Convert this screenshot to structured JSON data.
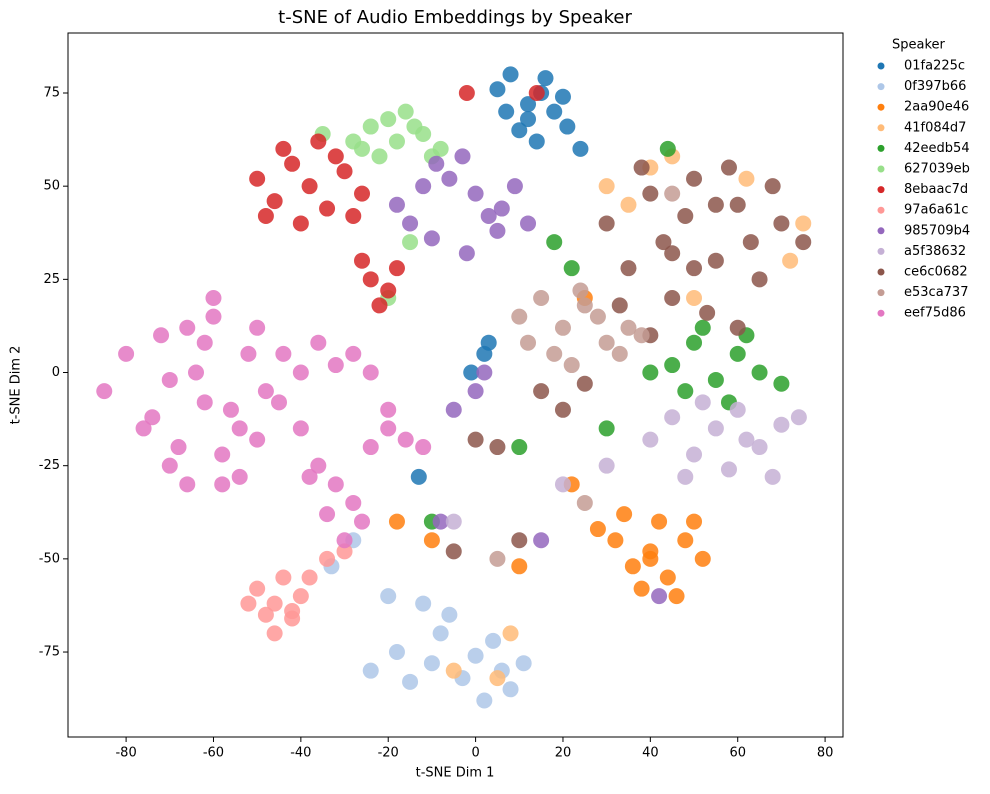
{
  "chart_data": {
    "type": "scatter",
    "title": "t-SNE of Audio Embeddings by Speaker",
    "x_label": "t-SNE Dim 1",
    "y_label": "t-SNE Dim 2",
    "legend_title": "Speaker",
    "legend_position": "outside-right",
    "xlim": [
      -93.3,
      84.1
    ],
    "ylim": [
      -97.8,
      91.1
    ],
    "xticks": [
      -80,
      -60,
      -40,
      -20,
      0,
      20,
      40,
      60,
      80
    ],
    "yticks": [
      -75,
      -50,
      -25,
      0,
      25,
      50,
      75
    ],
    "grid": false,
    "series": [
      {
        "name": "01fa225c",
        "color": "#1f77b4",
        "x": [
          5,
          8,
          12,
          15,
          18,
          21,
          10,
          14,
          20,
          7,
          16,
          12,
          2,
          -1,
          -13,
          3,
          24
        ],
        "y": [
          76,
          80,
          72,
          75,
          70,
          66,
          65,
          62,
          74,
          70,
          79,
          68,
          5,
          0,
          -28,
          8,
          60
        ]
      },
      {
        "name": "0f397b66",
        "color": "#aec7e8",
        "x": [
          -24,
          -18,
          -12,
          -8,
          -3,
          0,
          4,
          8,
          11,
          -15,
          -6,
          2,
          6,
          -20,
          -10,
          -28,
          -33
        ],
        "y": [
          -80,
          -75,
          -62,
          -70,
          -82,
          -76,
          -72,
          -85,
          -78,
          -83,
          -65,
          -88,
          -80,
          -60,
          -78,
          -45,
          -52
        ]
      },
      {
        "name": "2aa90e46",
        "color": "#ff7f0e",
        "x": [
          32,
          36,
          40,
          44,
          48,
          52,
          38,
          42,
          46,
          28,
          34,
          50,
          40,
          -10,
          -18,
          10,
          22,
          25
        ],
        "y": [
          -45,
          -52,
          -48,
          -55,
          -45,
          -50,
          -58,
          -40,
          -60,
          -42,
          -38,
          -40,
          -50,
          -45,
          -40,
          -52,
          -30,
          20
        ]
      },
      {
        "name": "41f084d7",
        "color": "#ffbb78",
        "x": [
          30,
          45,
          62,
          72,
          50,
          35,
          -5,
          5,
          8,
          75,
          40
        ],
        "y": [
          50,
          58,
          52,
          30,
          20,
          45,
          -80,
          -82,
          -70,
          40,
          55
        ]
      },
      {
        "name": "42eedb54",
        "color": "#2ca02c",
        "x": [
          45,
          50,
          55,
          60,
          65,
          48,
          58,
          52,
          62,
          40,
          70,
          22,
          18,
          30,
          -10,
          10,
          44
        ],
        "y": [
          2,
          8,
          -2,
          5,
          0,
          -5,
          -8,
          12,
          10,
          0,
          -3,
          28,
          35,
          -15,
          -40,
          -20,
          60
        ]
      },
      {
        "name": "627039eb",
        "color": "#98df8a",
        "x": [
          -28,
          -24,
          -20,
          -16,
          -12,
          -8,
          -22,
          -18,
          -14,
          -26,
          -10,
          -20,
          -15,
          -35
        ],
        "y": [
          62,
          66,
          68,
          70,
          64,
          60,
          58,
          62,
          66,
          60,
          58,
          20,
          35,
          64
        ]
      },
      {
        "name": "8ebaac7d",
        "color": "#d62728",
        "x": [
          -50,
          -46,
          -42,
          -38,
          -34,
          -30,
          -26,
          -44,
          -40,
          -36,
          -32,
          -28,
          -48,
          -24,
          -20,
          -26,
          -18,
          -2,
          14,
          -22
        ],
        "y": [
          52,
          46,
          56,
          50,
          44,
          54,
          48,
          60,
          40,
          62,
          58,
          42,
          42,
          25,
          22,
          30,
          28,
          75,
          75,
          18
        ]
      },
      {
        "name": "97a6a61c",
        "color": "#ff9896",
        "x": [
          -50,
          -46,
          -42,
          -48,
          -44,
          -40,
          -46,
          -38,
          -34,
          -30,
          -42,
          -52
        ],
        "y": [
          -58,
          -62,
          -66,
          -65,
          -55,
          -60,
          -70,
          -55,
          -50,
          -48,
          -64,
          -62
        ]
      },
      {
        "name": "985709b4",
        "color": "#9467bd",
        "x": [
          -18,
          -12,
          -6,
          0,
          6,
          12,
          -15,
          -9,
          -3,
          3,
          9,
          -10,
          -2,
          5,
          0,
          -5,
          2,
          -8,
          15,
          42
        ],
        "y": [
          45,
          50,
          52,
          48,
          44,
          40,
          40,
          56,
          58,
          42,
          50,
          36,
          32,
          38,
          -5,
          -10,
          0,
          -40,
          -45,
          -60
        ]
      },
      {
        "name": "a5f38632",
        "color": "#c5b0d5",
        "x": [
          40,
          45,
          50,
          55,
          60,
          65,
          70,
          48,
          58,
          68,
          52,
          62,
          74,
          20,
          30,
          -5
        ],
        "y": [
          -18,
          -12,
          -22,
          -15,
          -10,
          -20,
          -14,
          -28,
          -26,
          -28,
          -8,
          -18,
          -12,
          -30,
          -25,
          -40
        ]
      },
      {
        "name": "ce6c0682",
        "color": "#8c564b",
        "x": [
          30,
          35,
          40,
          45,
          50,
          55,
          60,
          65,
          70,
          75,
          33,
          38,
          43,
          48,
          53,
          58,
          63,
          68,
          40,
          50,
          60,
          45,
          55,
          15,
          20,
          25,
          5,
          0,
          10,
          -5
        ],
        "y": [
          40,
          28,
          48,
          20,
          52,
          30,
          45,
          25,
          40,
          35,
          18,
          55,
          35,
          42,
          16,
          55,
          35,
          50,
          10,
          28,
          12,
          32,
          45,
          -5,
          -10,
          -3,
          -20,
          -18,
          -45,
          -48
        ]
      },
      {
        "name": "e53ca737",
        "color": "#c49c94",
        "x": [
          10,
          15,
          20,
          25,
          30,
          35,
          12,
          18,
          24,
          28,
          33,
          22,
          38,
          45,
          5,
          25
        ],
        "y": [
          15,
          20,
          12,
          18,
          8,
          12,
          8,
          5,
          22,
          15,
          5,
          2,
          10,
          48,
          -50,
          -35
        ]
      },
      {
        "name": "eef75d86",
        "color": "#e377c2",
        "x": [
          -85,
          -80,
          -76,
          -72,
          -68,
          -64,
          -60,
          -56,
          -52,
          -48,
          -44,
          -40,
          -36,
          -32,
          -28,
          -24,
          -20,
          -70,
          -66,
          -62,
          -58,
          -54,
          -50,
          -74,
          -70,
          -66,
          -62,
          -58,
          -54,
          -40,
          -36,
          -32,
          -28,
          -24,
          -20,
          -16,
          -30,
          -26,
          -34,
          -38,
          -60,
          -50,
          -45,
          -12
        ],
        "y": [
          -5,
          5,
          -15,
          10,
          -20,
          0,
          15,
          -10,
          5,
          -5,
          5,
          0,
          8,
          2,
          5,
          0,
          -10,
          -25,
          -30,
          8,
          -22,
          -15,
          -18,
          -12,
          -2,
          12,
          -8,
          -30,
          -28,
          -15,
          -25,
          -30,
          -35,
          -20,
          -15,
          -18,
          -45,
          -40,
          -38,
          -28,
          20,
          12,
          -8,
          -20
        ]
      }
    ]
  }
}
